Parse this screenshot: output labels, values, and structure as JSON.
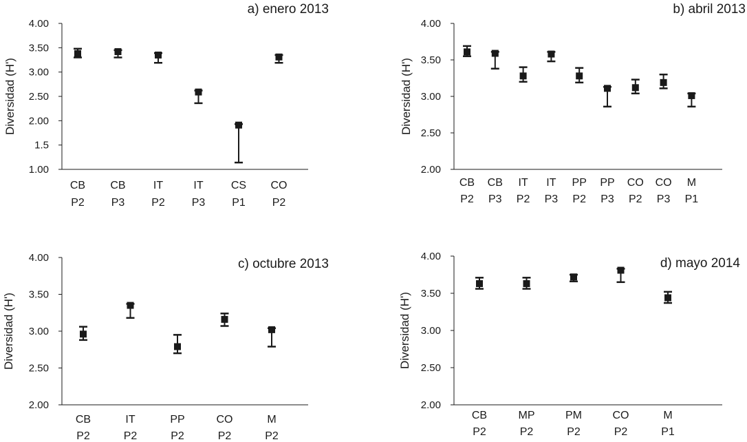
{
  "chart_data": [
    {
      "type": "scatter",
      "title": "a) enero 2013",
      "ylabel": "Diversidad (H')",
      "yticks": [
        "1.00",
        "1.5",
        "2.00",
        "2.50",
        "3.00",
        "3.50",
        "4.00"
      ],
      "ylim": [
        1.0,
        4.0
      ],
      "categories": [
        [
          "CB",
          "P2"
        ],
        [
          "CB",
          "P3"
        ],
        [
          "IT",
          "P2"
        ],
        [
          "IT",
          "P3"
        ],
        [
          "CS",
          "P1"
        ],
        [
          "CO",
          "P2"
        ]
      ],
      "values": [
        3.38,
        3.42,
        3.35,
        2.59,
        1.91,
        3.31
      ],
      "lower": [
        3.3,
        3.3,
        3.19,
        2.36,
        1.14,
        3.19
      ],
      "upper": [
        3.48,
        3.45,
        3.39,
        2.62,
        1.93,
        3.35
      ]
    },
    {
      "type": "scatter",
      "title": "b) abril 2013",
      "ylabel": "Diversidad (H')",
      "yticks": [
        "2.00",
        "2.50",
        "3.00",
        "3.50",
        "4.00"
      ],
      "ylim": [
        2.0,
        4.0
      ],
      "categories": [
        [
          "CB",
          "P2"
        ],
        [
          "CB",
          "P3"
        ],
        [
          "IT",
          "P2"
        ],
        [
          "IT",
          "P3"
        ],
        [
          "PP",
          "P2"
        ],
        [
          "PP",
          "P3"
        ],
        [
          "CO",
          "P2"
        ],
        [
          "CO",
          "P3"
        ],
        [
          "M",
          "P1"
        ]
      ],
      "values": [
        3.61,
        3.59,
        3.28,
        3.58,
        3.28,
        3.11,
        3.12,
        3.19,
        3.01
      ],
      "lower": [
        3.55,
        3.38,
        3.2,
        3.48,
        3.19,
        2.86,
        3.04,
        3.11,
        2.86
      ],
      "upper": [
        3.69,
        3.61,
        3.4,
        3.61,
        3.39,
        3.13,
        3.23,
        3.3,
        3.04
      ]
    },
    {
      "type": "scatter",
      "title": "c) octubre 2013",
      "ylabel": "Diversidad (H')",
      "yticks": [
        "2.00",
        "2.50",
        "3.00",
        "3.50",
        "4.00"
      ],
      "ylim": [
        2.0,
        4.0
      ],
      "categories": [
        [
          "CB",
          "P2"
        ],
        [
          "IT",
          "P2"
        ],
        [
          "PP",
          "P2"
        ],
        [
          "CO",
          "P2"
        ],
        [
          "M",
          "P2"
        ]
      ],
      "values": [
        2.96,
        3.35,
        2.79,
        3.16,
        3.02
      ],
      "lower": [
        2.88,
        3.18,
        2.7,
        3.07,
        2.79
      ],
      "upper": [
        3.06,
        3.37,
        2.95,
        3.24,
        3.04
      ]
    },
    {
      "type": "scatter",
      "title": "d) mayo 2014",
      "ylabel": "Diversidad (H')",
      "yticks": [
        "2.00",
        "2.50",
        "3.00",
        "3.50",
        "4.00"
      ],
      "ylim": [
        2.0,
        4.0
      ],
      "categories": [
        [
          "CB",
          "P2"
        ],
        [
          "MP",
          "P2"
        ],
        [
          "PM",
          "P2"
        ],
        [
          "CO",
          "P2"
        ],
        [
          "M",
          "P1"
        ]
      ],
      "values": [
        3.63,
        3.63,
        3.72,
        3.81,
        3.44
      ],
      "lower": [
        3.56,
        3.56,
        3.66,
        3.65,
        3.37
      ],
      "upper": [
        3.71,
        3.71,
        3.75,
        3.83,
        3.52
      ]
    }
  ]
}
